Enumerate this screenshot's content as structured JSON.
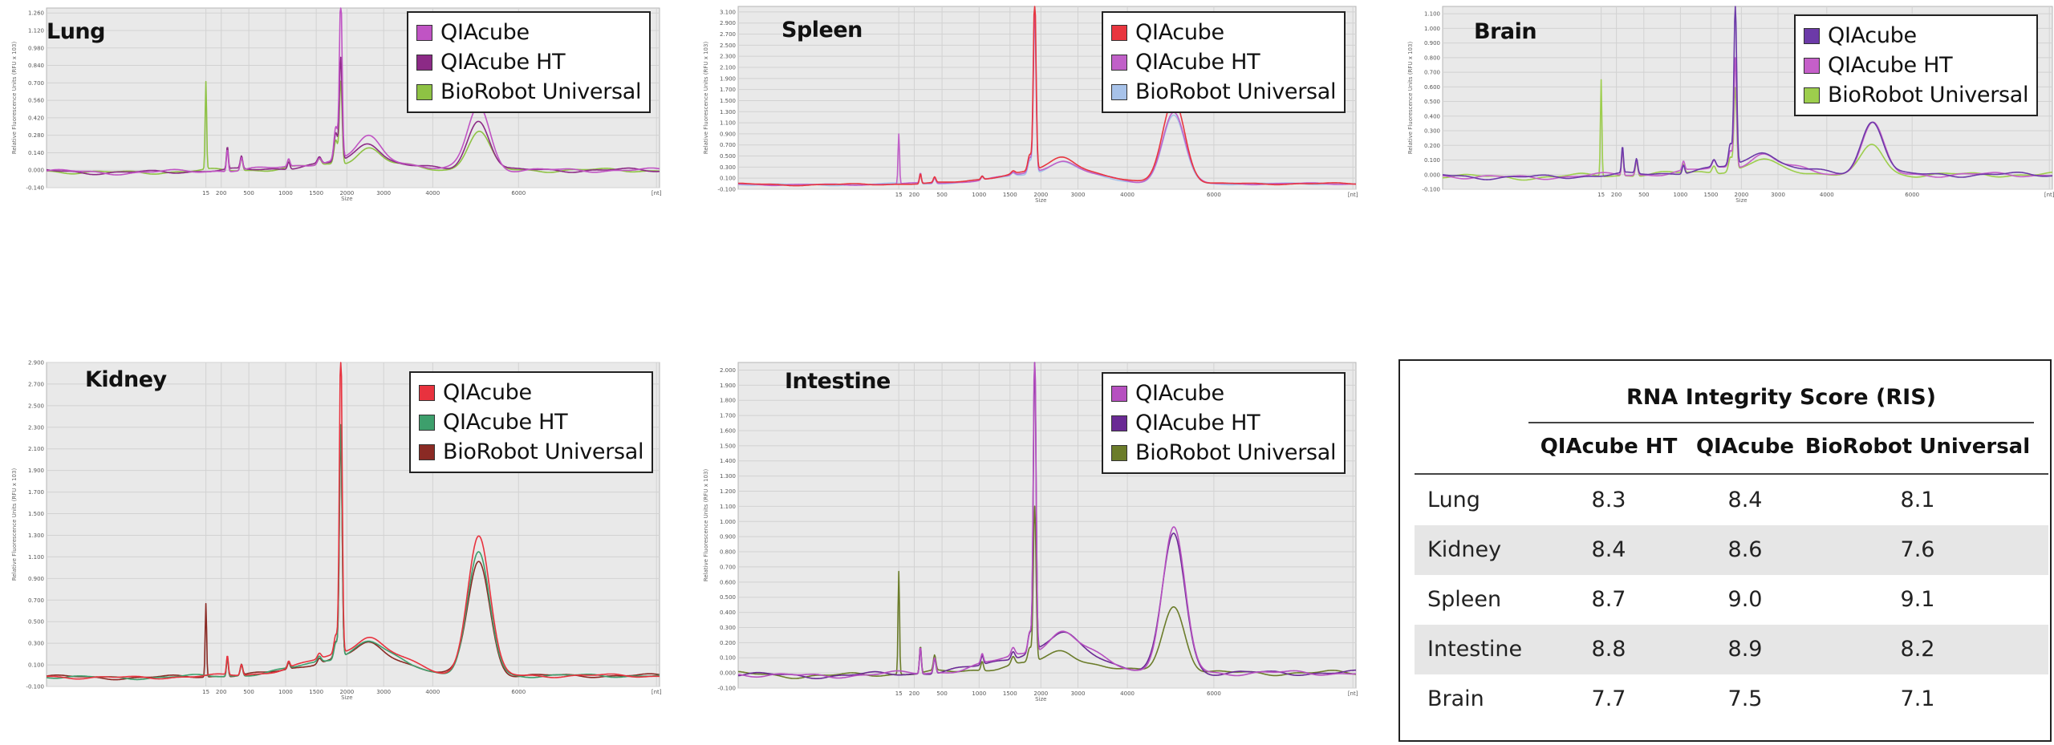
{
  "chart_data": [
    {
      "type": "line",
      "title": "Lung",
      "xlabel": "Size",
      "ylabel": "Relative Fluorescence Units (RFU x 103)",
      "y_ticks": [
        "-0.140",
        "0.000",
        "0.140",
        "0.280",
        "0.420",
        "0.560",
        "0.700",
        "0.840",
        "0.980",
        "1.120",
        "1.260"
      ],
      "ylim": [
        -0.14,
        1.3
      ],
      "x_ticks": [
        "15",
        "200",
        "500",
        "1000",
        "1500",
        "2000",
        "3000",
        "4000",
        "6000",
        "[nt]"
      ],
      "legend": [
        "QIAcube",
        "QIAcube HT",
        "BioRobot Universal"
      ],
      "legend_position": "top-right",
      "grid": true,
      "series": [
        {
          "name": "QIAcube",
          "color": "#c054c4",
          "peaks": {
            "marker_15nt": 0.0,
            "18S": 0.75,
            "28S": 1.31,
            "main_peak_height": 0.52
          }
        },
        {
          "name": "QIAcube HT",
          "color": "#8c2a86",
          "peaks": {
            "marker_15nt": 0.0,
            "18S": 0.66,
            "28S": 0.82,
            "main_peak_height": 0.4
          }
        },
        {
          "name": "BioRobot Universal",
          "color": "#8ec244",
          "peaks": {
            "marker_15nt": 0.7,
            "18S": 0.55,
            "28S": 0.66,
            "main_peak_height": 0.31
          }
        }
      ]
    },
    {
      "type": "line",
      "title": "Spleen",
      "xlabel": "Size",
      "ylabel": "Relative Fluorescence Units (RFU x 103)",
      "y_ticks": [
        "-0.100",
        "0.100",
        "0.300",
        "0.500",
        "0.700",
        "0.900",
        "1.100",
        "1.300",
        "1.500",
        "1.700",
        "1.900",
        "2.100",
        "2.300",
        "2.500",
        "2.700",
        "2.900",
        "3.100"
      ],
      "ylim": [
        -0.1,
        3.2
      ],
      "x_ticks": [
        "15",
        "200",
        "500",
        "1000",
        "1500",
        "2000",
        "3000",
        "4000",
        "6000",
        "[nt]"
      ],
      "legend": [
        "QIAcube",
        "QIAcube HT",
        "BioRobot Universal"
      ],
      "legend_position": "top-right",
      "grid": true,
      "series": [
        {
          "name": "QIAcube",
          "color": "#e8363f",
          "peaks": {
            "marker_15nt": 0.0,
            "18S": 0.83,
            "28S": 3.15,
            "main_peak_height": 1.52
          }
        },
        {
          "name": "QIAcube HT",
          "color": "#c060c8",
          "peaks": {
            "marker_15nt": 0.9,
            "18S": 0.75,
            "28S": 2.9,
            "main_peak_height": 1.3
          }
        },
        {
          "name": "BioRobot Universal",
          "color": "#a7c2e9",
          "peaks": {
            "marker_15nt": 0.0,
            "18S": 0.72,
            "28S": 2.75,
            "main_peak_height": 1.22
          }
        }
      ]
    },
    {
      "type": "line",
      "title": "Brain",
      "xlabel": "Size",
      "ylabel": "Relative Fluorescence Units (RFU x 103)",
      "y_ticks": [
        "-0.100",
        "0.000",
        "0.100",
        "0.200",
        "0.300",
        "0.400",
        "0.500",
        "0.600",
        "0.700",
        "0.800",
        "0.900",
        "1.000",
        "1.100"
      ],
      "ylim": [
        -0.1,
        1.15
      ],
      "x_ticks": [
        "15",
        "200",
        "500",
        "1000",
        "1500",
        "2000",
        "3000",
        "4000",
        "6000",
        "[nt]"
      ],
      "legend": [
        "QIAcube",
        "QIAcube HT",
        "BioRobot Universal"
      ],
      "legend_position": "top-right",
      "grid": true,
      "series": [
        {
          "name": "QIAcube",
          "color": "#6c3aa8",
          "peaks": {
            "marker_15nt": 0.0,
            "18S": 0.42,
            "28S": 1.1,
            "main_peak_height": 0.37
          }
        },
        {
          "name": "QIAcube HT",
          "color": "#c55fc9",
          "peaks": {
            "marker_15nt": 0.0,
            "18S": 0.33,
            "28S": 0.75,
            "main_peak_height": 0.35
          }
        },
        {
          "name": "BioRobot Universal",
          "color": "#9dce4d",
          "peaks": {
            "marker_15nt": 0.66,
            "18S": 0.28,
            "28S": 0.56,
            "main_peak_height": 0.2
          }
        }
      ]
    },
    {
      "type": "line",
      "title": "Kidney",
      "xlabel": "Size",
      "ylabel": "Relative Fluorescence Units (RFU x 103)",
      "y_ticks": [
        "-0.100",
        "0.100",
        "0.300",
        "0.500",
        "0.700",
        "0.900",
        "1.100",
        "1.300",
        "1.500",
        "1.700",
        "1.900",
        "2.100",
        "2.300",
        "2.500",
        "2.700",
        "2.900"
      ],
      "ylim": [
        -0.1,
        2.9
      ],
      "x_ticks": [
        "15",
        "200",
        "500",
        "1000",
        "1500",
        "2000",
        "3000",
        "4000",
        "6000",
        "[nt]"
      ],
      "legend": [
        "QIAcube",
        "QIAcube HT",
        "BioRobot Universal"
      ],
      "legend_position": "top-right",
      "grid": true,
      "series": [
        {
          "name": "QIAcube",
          "color": "#e8323e",
          "peaks": {
            "marker_15nt": 0.0,
            "18S": 0.5,
            "28S": 2.9,
            "main_peak_height": 1.3
          }
        },
        {
          "name": "QIAcube HT",
          "color": "#3d9f6c",
          "peaks": {
            "marker_15nt": 0.0,
            "18S": 0.44,
            "28S": 2.15,
            "main_peak_height": 1.13
          }
        },
        {
          "name": "BioRobot Universal",
          "color": "#8a2a24",
          "peaks": {
            "marker_15nt": 0.68,
            "18S": 0.42,
            "28S": 2.05,
            "main_peak_height": 1.06
          }
        }
      ]
    },
    {
      "type": "line",
      "title": "Intestine",
      "xlabel": "Size",
      "ylabel": "Relative Fluorescence Units (RFU x 103)",
      "y_ticks": [
        "-0.100",
        "0.000",
        "0.100",
        "0.200",
        "0.300",
        "0.400",
        "0.500",
        "0.600",
        "0.700",
        "0.800",
        "0.900",
        "1.000",
        "1.100",
        "1.200",
        "1.300",
        "1.400",
        "1.500",
        "1.600",
        "1.700",
        "1.800",
        "1.900",
        "2.000"
      ],
      "ylim": [
        -0.1,
        2.05
      ],
      "x_ticks": [
        "15",
        "200",
        "500",
        "1000",
        "1500",
        "2000",
        "3000",
        "4000",
        "6000",
        "[nt]"
      ],
      "legend": [
        "QIAcube",
        "QIAcube HT",
        "BioRobot Universal"
      ],
      "legend_position": "top-right",
      "grid": true,
      "series": [
        {
          "name": "QIAcube",
          "color": "#b650c0",
          "peaks": {
            "marker_15nt": 0.0,
            "18S": 0.4,
            "28S": 2.03,
            "main_peak_height": 0.95
          }
        },
        {
          "name": "QIAcube HT",
          "color": "#6a2a94",
          "peaks": {
            "marker_15nt": 0.0,
            "18S": 0.37,
            "28S": 1.9,
            "main_peak_height": 0.92
          }
        },
        {
          "name": "BioRobot Universal",
          "color": "#6b7c2a",
          "peaks": {
            "marker_15nt": 0.68,
            "18S": 0.27,
            "28S": 1.02,
            "main_peak_height": 0.44
          }
        }
      ]
    },
    {
      "type": "table",
      "title": "RNA Integrity Score (RIS)",
      "columns": [
        "QIAcube HT",
        "QIAcube",
        "BioRobot Universal"
      ],
      "rows": [
        {
          "label": "Lung",
          "values": [
            "8.3",
            "8.4",
            "8.1"
          ]
        },
        {
          "label": "Kidney",
          "values": [
            "8.4",
            "8.6",
            "7.6"
          ]
        },
        {
          "label": "Spleen",
          "values": [
            "8.7",
            "9.0",
            "9.1"
          ]
        },
        {
          "label": "Intestine",
          "values": [
            "8.8",
            "8.9",
            "8.2"
          ]
        },
        {
          "label": "Brain",
          "values": [
            "7.7",
            "7.5",
            "7.1"
          ]
        }
      ]
    }
  ]
}
